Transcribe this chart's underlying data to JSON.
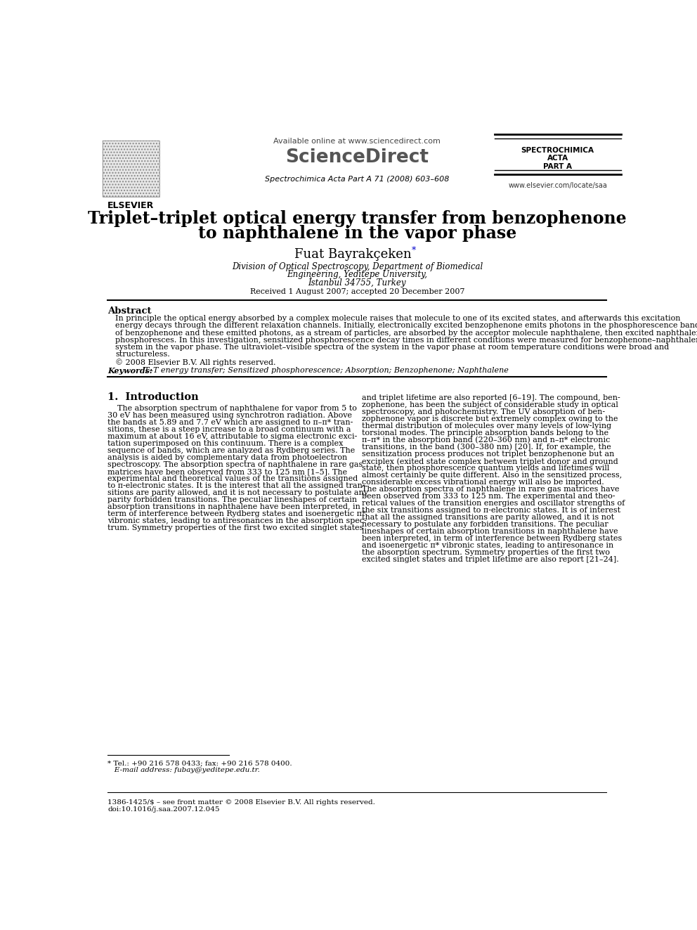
{
  "title_line1": "Triplet–triplet optical energy transfer from benzophenone",
  "title_line2": "to naphthalene in the vapor phase",
  "author": "Fuat Bayrakçeken",
  "author_star": "*",
  "affiliation1": "Division of Optical Spectroscopy, Department of Biomedical",
  "affiliation2": "Engineering, Yeditepe University,",
  "affiliation3": "İstanbul 34755, Turkey",
  "received": "Received 1 August 2007; accepted 20 December 2007",
  "header_available": "Available online at www.sciencedirect.com",
  "header_journal_name": "ScienceDirect",
  "header_journal_sub": "Spectrochimica Acta Part A 71 (2008) 603–608",
  "journal_right1": "SPECTROCHIMICA",
  "journal_right2": "ACTA",
  "journal_right3": "PART A",
  "journal_url": "www.elsevier.com/locate/saa",
  "elsevier_text": "ELSEVIER",
  "abstract_title": "Abstract",
  "abstract_text": "In principle the optical energy absorbed by a complex molecule raises that molecule to one of its excited states, and afterwards this excitation\nenergy decays through the different relaxation channels. Initially, electronically excited benzophenone emits photons in the phosphorescence band\nof benzophenone and these emitted photons, as a stream of particles, are absorbed by the acceptor molecule naphthalene, then excited naphthalene\nphosphoresces. In this investigation, sensitized phosphorescence decay times in different conditions were measured for benzophenone–naphthalene\nsystem in the vapor phase. The ultraviolet–visible spectra of the system in the vapor phase at room temperature conditions were broad and\nstructureless.",
  "copyright": "© 2008 Elsevier B.V. All rights reserved.",
  "keywords_label": "Keywords:",
  "keywords_text": "  T–T energy transfer; Sensitized phosphorescence; Absorption; Benzophenone; Naphthalene",
  "section1_title": "1.  Introduction",
  "section1_left": [
    "    The absorption spectrum of naphthalene for vapor from 5 to",
    "30 eV has been measured using synchrotron radiation. Above",
    "the bands at 5.89 and 7.7 eV which are assigned to π–π* tran-",
    "sitions, these is a steep increase to a broad continuum with a",
    "maximum at about 16 eV, attributable to sigma electronic exci-",
    "tation superimposed on this continuum. There is a complex",
    "sequence of bands, which are analyzed as Rydberg series. The",
    "analysis is aided by complementary data from photoelectron",
    "spectroscopy. The absorption spectra of naphthalene in rare gas",
    "matrices have been observed from 333 to 125 nm [1–5]. The",
    "experimental and theoretical values of the transitions assigned",
    "to π-electronic states. It is the interest that all the assigned tran-",
    "sitions are parity allowed, and it is not necessary to postulate any",
    "parity forbidden transitions. The peculiar lineshapes of certain",
    "absorption transitions in naphthalene have been interpreted, in",
    "term of interference between Rydberg states and isoenergetic π*",
    "vibronic states, leading to antiresonances in the absorption spec-",
    "trum. Symmetry properties of the first two excited singlet states"
  ],
  "section1_right": [
    "and triplet lifetime are also reported [6–19]. The compound, ben-",
    "zophenone, has been the subject of considerable study in optical",
    "spectroscopy, and photochemistry. The UV absorption of ben-",
    "zophenone vapor is discrete but extremely complex owing to the",
    "thermal distribution of molecules over many levels of low-lying",
    "torsional modes. The principle absorption bands belong to the",
    "π–π* in the absorption band (220–360 nm) and n–π* electronic",
    "transitions, in the band (300–380 nm) [20]. If, for example, the",
    "sensitization process produces not triplet benzophenone but an",
    "exciplex (exited state complex between triplet donor and ground",
    "state, then phosphorescence quantum yields and lifetimes will",
    "almost certainly be quite different. Also in the sensitized process,",
    "considerable excess vibrational energy will also be imported.",
    "The absorption spectra of naphthalene in rare gas matrices have",
    "been observed from 333 to 125 nm. The experimental and theo-",
    "retical values of the transition energies and oscillator strengths of",
    "the six transitions assigned to π-electronic states. It is of interest",
    "that all the assigned transitions are parity allowed, and it is not",
    "necessary to postulate any forbidden transitions. The peculiar",
    "lineshapes of certain absorption transitions in naphthalene have",
    "been interpreted, in term of interference between Rydberg states",
    "and isoenergetic π* vibronic states, leading to antiresonance in",
    "the absorption spectrum. Symmetry properties of the first two",
    "excited singlet states and triplet lifetime are also report [21–24]."
  ],
  "footnote_tel": "* Tel.: +90 216 578 0433; fax: +90 216 578 0400.",
  "footnote_email": "   E-mail address: fubay@yeditepe.edu.tr.",
  "footer_issn": "1386-1425/$ – see front matter © 2008 Elsevier B.V. All rights reserved.",
  "footer_doi": "doi:10.1016/j.saa.2007.12.045",
  "bg_color": "#ffffff",
  "text_color": "#000000",
  "blue_color": "#0000cc"
}
